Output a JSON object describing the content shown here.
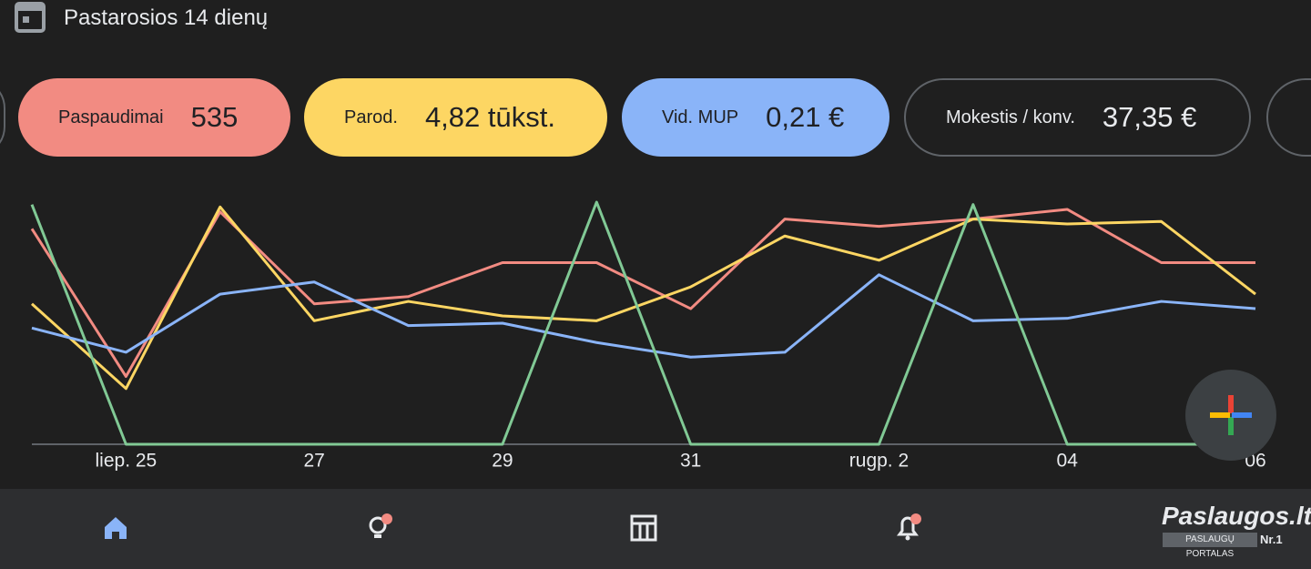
{
  "header": {
    "title": "Pastarosios 14 dienų"
  },
  "metrics": [
    {
      "label": "Paspaudimai",
      "value": "535"
    },
    {
      "label": "Parod.",
      "value": "4,82 tūkst."
    },
    {
      "label": "Vid. MUP",
      "value": "0,21 €"
    },
    {
      "label": "Mokestis / konv.",
      "value": "37,35 €"
    }
  ],
  "chart_data": {
    "type": "line",
    "categories": [
      null,
      "liep. 25",
      null,
      "27",
      null,
      "29",
      null,
      "31",
      null,
      "rugp. 2",
      null,
      "04",
      null,
      "06"
    ],
    "series": [
      {
        "name": "Paspaudimai",
        "color": "#f28b82",
        "values": [
          89,
          28,
          96,
          58,
          61,
          75,
          75,
          56,
          93,
          90,
          93,
          97,
          75,
          75
        ]
      },
      {
        "name": "Parod.",
        "color": "#fdd663",
        "values": [
          58,
          23,
          98,
          51,
          59,
          53,
          51,
          65,
          86,
          76,
          93,
          91,
          92,
          62
        ]
      },
      {
        "name": "Vid. MUP",
        "color": "#8ab4f8",
        "values": [
          48,
          38,
          62,
          67,
          49,
          50,
          42,
          36,
          38,
          70,
          51,
          52,
          59,
          56
        ]
      },
      {
        "name": "Mokestis / konv.",
        "color": "#81c995",
        "values": [
          99,
          0,
          0,
          0,
          0,
          0,
          100,
          0,
          0,
          0,
          99,
          0,
          0,
          0
        ]
      }
    ],
    "ylim": [
      0,
      100
    ]
  },
  "watermark": {
    "title": "Paslaugos.lt",
    "subtitle": "PASLAUGŲ PORTALAS",
    "badge": "Nr.1"
  }
}
